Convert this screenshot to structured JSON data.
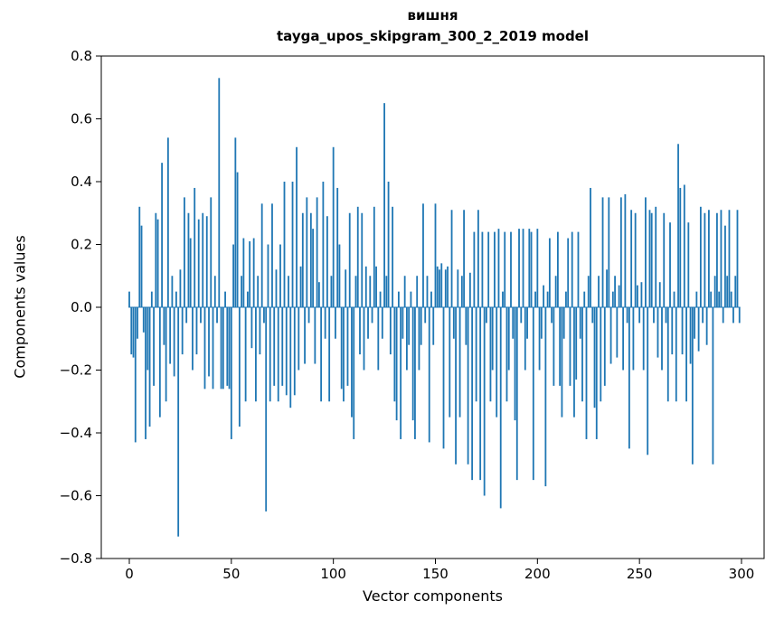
{
  "chart_data": {
    "type": "bar",
    "title_line1": "вишня",
    "title_line2": "tayga_upos_skipgram_300_2_2019 model",
    "xlabel": "Vector components",
    "ylabel": "Components values",
    "xlim": [
      -15,
      315
    ],
    "ylim": [
      -0.8,
      0.8
    ],
    "xticks": [
      0,
      50,
      100,
      150,
      200,
      250,
      300
    ],
    "yticks": [
      0.8,
      0.6,
      0.4,
      0.2,
      0.0,
      -0.2,
      -0.4,
      -0.6,
      -0.8
    ],
    "grid": false,
    "legend": "none",
    "bar_color": "#1f77b4",
    "n_components": 300,
    "values": [
      0.05,
      -0.15,
      -0.16,
      -0.43,
      -0.1,
      0.32,
      0.26,
      -0.08,
      -0.42,
      -0.2,
      -0.38,
      0.05,
      -0.25,
      0.3,
      0.28,
      -0.35,
      0.46,
      -0.12,
      -0.3,
      0.54,
      -0.18,
      0.1,
      -0.22,
      0.05,
      -0.73,
      0.12,
      -0.15,
      0.35,
      -0.05,
      0.3,
      0.22,
      -0.2,
      0.38,
      -0.15,
      0.28,
      -0.05,
      0.3,
      -0.26,
      0.29,
      -0.22,
      0.35,
      -0.26,
      0.1,
      -0.05,
      0.73,
      -0.26,
      -0.26,
      0.05,
      -0.25,
      -0.26,
      -0.42,
      0.2,
      0.54,
      0.43,
      -0.38,
      0.1,
      0.22,
      -0.3,
      0.05,
      0.21,
      -0.13,
      0.22,
      -0.3,
      0.1,
      -0.15,
      0.33,
      -0.05,
      -0.65,
      0.2,
      -0.3,
      0.33,
      -0.25,
      0.12,
      -0.3,
      0.2,
      -0.25,
      0.4,
      -0.28,
      0.1,
      -0.32,
      0.4,
      -0.28,
      0.51,
      -0.2,
      0.13,
      0.3,
      -0.18,
      0.35,
      -0.05,
      0.3,
      0.25,
      -0.18,
      0.35,
      0.08,
      -0.3,
      0.4,
      -0.1,
      0.29,
      -0.3,
      0.1,
      0.51,
      -0.1,
      0.38,
      0.2,
      -0.26,
      -0.3,
      0.12,
      -0.25,
      0.3,
      -0.35,
      -0.42,
      0.1,
      0.32,
      -0.15,
      0.3,
      -0.2,
      0.13,
      -0.1,
      0.1,
      -0.05,
      0.32,
      0.13,
      -0.2,
      0.05,
      -0.1,
      0.65,
      0.1,
      0.4,
      -0.15,
      0.32,
      -0.3,
      -0.36,
      0.05,
      -0.42,
      -0.1,
      0.1,
      -0.2,
      -0.12,
      0.05,
      -0.36,
      -0.42,
      0.1,
      -0.2,
      -0.12,
      0.33,
      -0.05,
      0.1,
      -0.43,
      0.05,
      -0.12,
      0.33,
      0.13,
      0.12,
      0.14,
      -0.45,
      0.12,
      0.13,
      -0.35,
      0.31,
      -0.1,
      -0.5,
      0.12,
      -0.35,
      0.1,
      0.31,
      -0.12,
      -0.5,
      0.11,
      -0.55,
      0.24,
      -0.3,
      0.31,
      -0.55,
      0.24,
      -0.6,
      -0.05,
      0.24,
      -0.3,
      -0.2,
      0.24,
      -0.35,
      0.25,
      -0.64,
      0.05,
      0.24,
      -0.3,
      -0.2,
      0.24,
      -0.1,
      -0.36,
      -0.55,
      0.25,
      -0.05,
      0.25,
      -0.2,
      -0.1,
      0.25,
      0.24,
      -0.55,
      0.05,
      0.25,
      -0.2,
      -0.1,
      0.07,
      -0.57,
      0.05,
      0.22,
      -0.05,
      -0.25,
      0.1,
      0.24,
      -0.25,
      -0.35,
      -0.1,
      0.05,
      0.22,
      -0.25,
      0.24,
      -0.35,
      -0.23,
      0.24,
      -0.1,
      -0.3,
      0.05,
      -0.42,
      0.1,
      0.38,
      -0.05,
      -0.32,
      -0.42,
      0.1,
      -0.3,
      0.35,
      -0.25,
      0.12,
      0.35,
      -0.18,
      0.05,
      0.1,
      -0.16,
      0.07,
      0.35,
      -0.2,
      0.36,
      -0.05,
      -0.45,
      0.31,
      -0.2,
      0.3,
      0.07,
      -0.05,
      0.08,
      -0.2,
      0.35,
      -0.47,
      0.31,
      0.3,
      -0.05,
      0.32,
      -0.16,
      0.08,
      -0.2,
      0.3,
      -0.05,
      -0.3,
      0.27,
      -0.15,
      0.05,
      -0.3,
      0.52,
      0.38,
      -0.15,
      0.39,
      -0.3,
      0.27,
      -0.18,
      -0.5,
      -0.1,
      0.05,
      -0.14,
      0.32,
      -0.05,
      0.3,
      -0.12,
      0.31,
      0.05,
      -0.5,
      0.1,
      0.3,
      0.05,
      0.31,
      -0.05,
      0.26,
      0.1,
      0.31,
      0.05,
      -0.05,
      0.1,
      0.31,
      -0.05
    ]
  }
}
